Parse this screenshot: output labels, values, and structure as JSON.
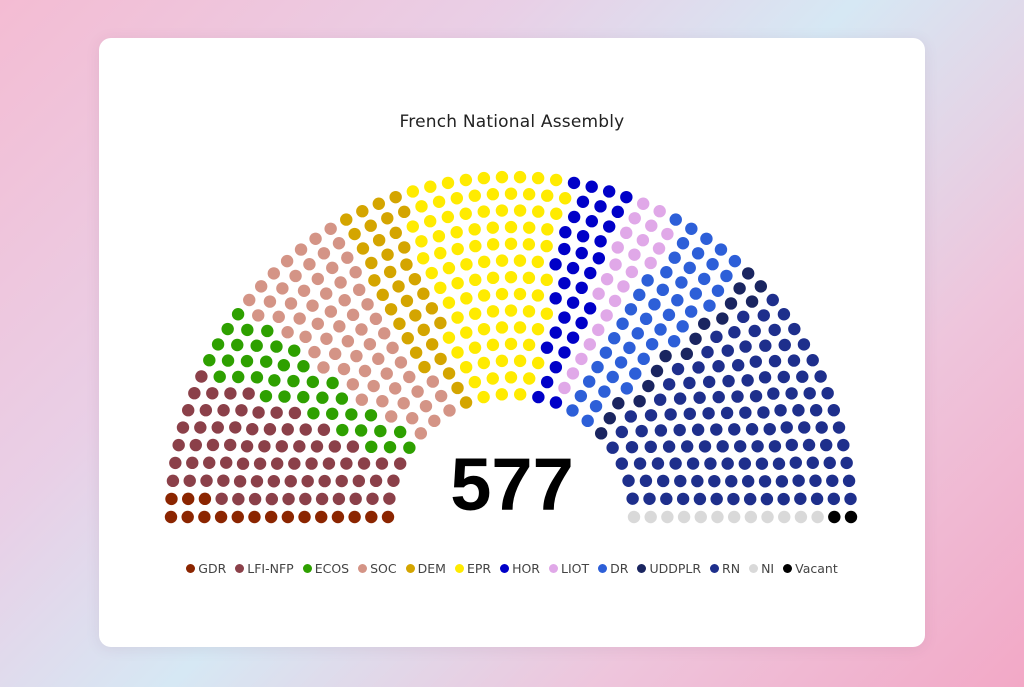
{
  "chart_data": {
    "type": "parliament",
    "title": "French National Assembly",
    "total_seats": "577",
    "parties": [
      {
        "name": "GDR",
        "seats": 17,
        "color": "#8b2500"
      },
      {
        "name": "LFI-NFP",
        "seats": 71,
        "color": "#8b4049"
      },
      {
        "name": "ECOS",
        "seats": 38,
        "color": "#2ea000"
      },
      {
        "name": "SOC",
        "seats": 66,
        "color": "#d49486"
      },
      {
        "name": "DEM",
        "seats": 36,
        "color": "#d4a500"
      },
      {
        "name": "EPR",
        "seats": 92,
        "color": "#ffeb00"
      },
      {
        "name": "HOR",
        "seats": 34,
        "color": "#0000c8"
      },
      {
        "name": "LIOT",
        "seats": 23,
        "color": "#e0a8e8"
      },
      {
        "name": "DR",
        "seats": 47,
        "color": "#2d5fd8"
      },
      {
        "name": "UDDPLR",
        "seats": 16,
        "color": "#1a2560"
      },
      {
        "name": "RN",
        "seats": 123,
        "color": "#1e2f8c"
      },
      {
        "name": "NI",
        "seats": 12,
        "color": "#d9d9d9"
      },
      {
        "name": "Vacant",
        "seats": 2,
        "color": "#000000"
      }
    ],
    "legend_position": "bottom"
  }
}
